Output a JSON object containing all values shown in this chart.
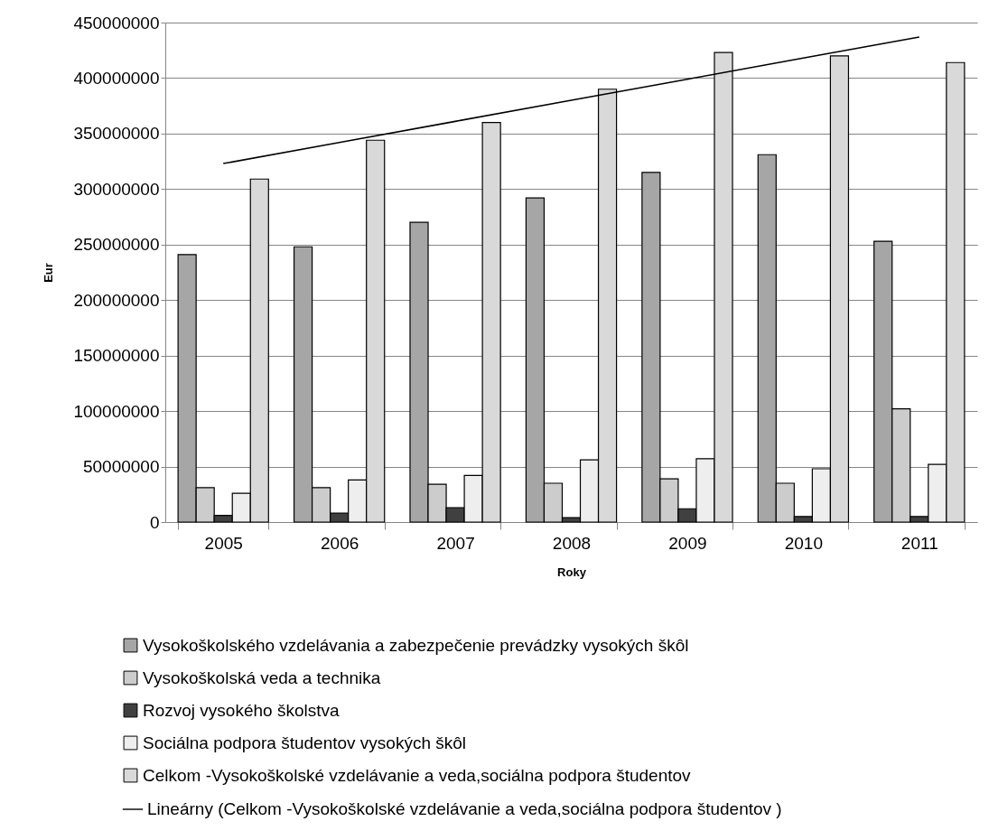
{
  "chart_data": {
    "type": "bar",
    "xlabel": "Roky",
    "ylabel": "Eur",
    "categories": [
      "2005",
      "2006",
      "2007",
      "2008",
      "2009",
      "2010",
      "2011"
    ],
    "series": [
      {
        "name": "Vysokoškolského vzdelávania a zabezpečenie prevádzky vysokých škôl",
        "color": "#a6a6a6",
        "values": [
          241000000,
          248000000,
          270000000,
          292000000,
          315000000,
          331000000,
          253000000
        ]
      },
      {
        "name": "Vysokoškolská veda a technika",
        "color": "#cccccc",
        "values": [
          31000000,
          31000000,
          34000000,
          35000000,
          39000000,
          35000000,
          102000000
        ]
      },
      {
        "name": "Rozvoj vysokého školstva",
        "color": "#404040",
        "values": [
          6000000,
          8000000,
          13000000,
          4000000,
          12000000,
          5000000,
          5000000
        ]
      },
      {
        "name": "Sociálna podpora študentov vysokých škôl",
        "color": "#eeeeee",
        "values": [
          26000000,
          38000000,
          42000000,
          56000000,
          57000000,
          48000000,
          52000000
        ]
      },
      {
        "name": "Celkom -Vysokoškolské vzdelávanie a veda,sociálna podpora študentov",
        "color": "#d9d9d9",
        "values": [
          309000000,
          344000000,
          360000000,
          390000000,
          423000000,
          420000000,
          414000000
        ]
      },
      {
        "name": "Lineárny (Celkom -Vysokoškolské vzdelávanie a veda,sociálna podpora študentov )",
        "type": "line",
        "color": "#000000",
        "values": [
          323000000,
          342000000,
          361000000,
          380000000,
          399000000,
          418000000,
          437000000
        ]
      }
    ],
    "ylim": [
      0,
      450000000
    ],
    "yticks": [
      0,
      50000000,
      100000000,
      150000000,
      200000000,
      250000000,
      300000000,
      350000000,
      400000000,
      450000000
    ],
    "grid": "y",
    "legend": "bottom"
  }
}
